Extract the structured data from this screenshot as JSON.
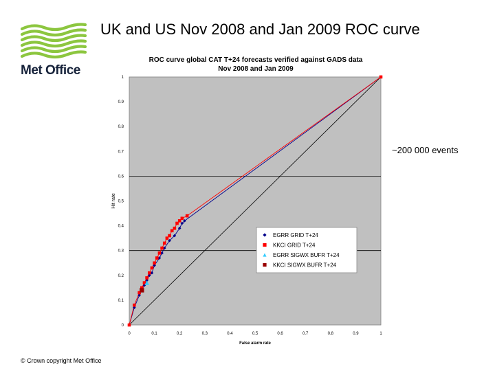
{
  "slide": {
    "title": "UK and US Nov 2008 and Jan 2009 ROC curve",
    "annotation": "~200 000 events",
    "copyright": "© Crown copyright   Met Office",
    "logo_text": "Met Office",
    "logo_color": "#8cc63f"
  },
  "chart_data": {
    "type": "scatter",
    "title": "ROC curve global CAT T+24 forecasts verified against GADS data",
    "subtitle": "Nov 2008 and Jan 2009",
    "xlabel": "False alarm rate",
    "ylabel": "Hit rate",
    "xlim": [
      0,
      1
    ],
    "ylim": [
      0,
      1
    ],
    "xticks": [
      "0",
      "0.1",
      "0.2",
      "0.3",
      "0.4",
      "0.5",
      "0.6",
      "0.7",
      "0.8",
      "0.9",
      "1"
    ],
    "yticks": [
      "0",
      "0.1",
      "0.2",
      "0.3",
      "0.4",
      "0.5",
      "0.6",
      "0.7",
      "0.8",
      "0.9",
      "1"
    ],
    "horizontal_gridlines": [
      0.3,
      0.6
    ],
    "plot_background": "#c0c0c0",
    "legend_position": "lower-right",
    "series": [
      {
        "name": "EGRR GRID T+24",
        "color": "#00008b",
        "marker": "diamond",
        "x": [
          0,
          0.02,
          0.04,
          0.05,
          0.06,
          0.07,
          0.08,
          0.09,
          0.1,
          0.12,
          0.13,
          0.14,
          0.16,
          0.18,
          0.2,
          0.21,
          0.22,
          1
        ],
        "y": [
          0,
          0.07,
          0.12,
          0.14,
          0.16,
          0.18,
          0.2,
          0.21,
          0.24,
          0.27,
          0.29,
          0.31,
          0.34,
          0.36,
          0.39,
          0.41,
          0.42,
          1
        ]
      },
      {
        "name": "KKCI GRID T+24",
        "color": "#ff0000",
        "marker": "square",
        "x": [
          0,
          0.02,
          0.04,
          0.05,
          0.06,
          0.07,
          0.08,
          0.09,
          0.1,
          0.11,
          0.12,
          0.13,
          0.14,
          0.15,
          0.16,
          0.17,
          0.18,
          0.19,
          0.2,
          0.21,
          0.23,
          1
        ],
        "y": [
          0,
          0.08,
          0.13,
          0.15,
          0.17,
          0.19,
          0.21,
          0.23,
          0.25,
          0.27,
          0.29,
          0.31,
          0.33,
          0.35,
          0.36,
          0.38,
          0.39,
          0.41,
          0.42,
          0.43,
          0.44,
          1
        ]
      },
      {
        "name": "EGRR SIGWX BUFR T+24",
        "color": "#33ccff",
        "marker": "triangle",
        "x": [
          0.05,
          0.07
        ],
        "y": [
          0.14,
          0.17
        ]
      },
      {
        "name": "KKCI SIGWX BUFR T+24",
        "color": "#990000",
        "marker": "square",
        "x": [
          0.05
        ],
        "y": [
          0.14
        ]
      }
    ]
  }
}
